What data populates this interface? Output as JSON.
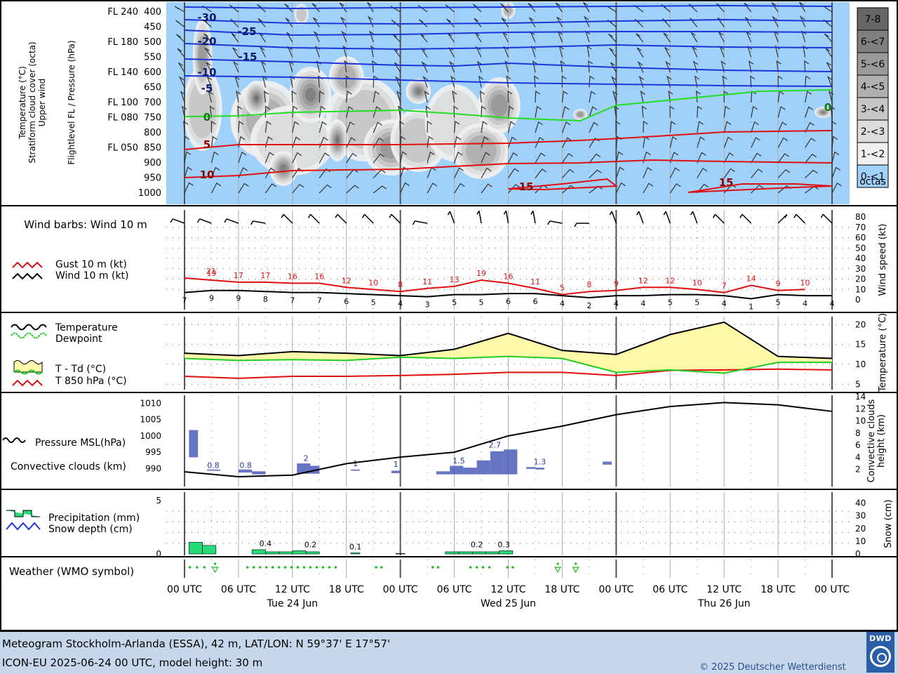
{
  "panels": {
    "upper": {
      "label_left_1": "Temperature (°C)",
      "label_left_2": "Stratiform cloud cover (octa)",
      "label_left_3": "Upper wind",
      "label_right": "Flightlevel FL / Pressure (hPa)",
      "pressure_levels": [
        "400",
        "450",
        "500",
        "550",
        "600",
        "650",
        "700",
        "750",
        "800",
        "850",
        "900",
        "950",
        "1000"
      ],
      "flight_levels": [
        {
          "label": "FL 240",
          "level": "400"
        },
        {
          "label": "FL 180",
          "level": "500"
        },
        {
          "label": "FL 140",
          "level": "600"
        },
        {
          "label": "FL 100",
          "level": "700"
        },
        {
          "label": "FL 080",
          "level": "750"
        },
        {
          "label": "FL 050",
          "level": "850"
        }
      ],
      "cloud_legend": [
        "7-8",
        "6-<7",
        "5-<6",
        "4-<5",
        "3-<4",
        "2-<3",
        "1-<2",
        "0-<1"
      ],
      "cloud_legend_unit": "octas",
      "cloud_legend_colors": [
        "#666666",
        "#808080",
        "#9a9a9a",
        "#b0b0b0",
        "#c6c6c6",
        "#dcdcdc",
        "#efefef",
        "#9fd1fa"
      ],
      "isotherm_labels": [
        "-30",
        "-25",
        "-20",
        "-15",
        "-10",
        "-5",
        "0",
        "5",
        "10",
        "15",
        "15",
        "0"
      ]
    },
    "wind": {
      "title": "Wind barbs: Wind 10 m",
      "gust_legend": "Gust 10 m (kt)",
      "wind_legend": "Wind 10 m (kt)",
      "axis_label": "Wind speed (kt)",
      "ticks": [
        "80",
        "70",
        "60",
        "50",
        "40",
        "30",
        "20",
        "10",
        "0"
      ]
    },
    "temperature": {
      "legend_temp": "Temperature",
      "legend_dew": "Dewpoint",
      "legend_spread": "T - Td (°C)",
      "legend_t850": "T 850 hPa (°C)",
      "axis_label": "Temperature (°C)",
      "ticks": [
        "20",
        "15",
        "10",
        "5"
      ]
    },
    "pressure": {
      "legend_pressure": "Pressure MSL(hPa)",
      "legend_conv": "Convective clouds (km)",
      "axis_label_1": "Convective clouds",
      "axis_label_2": "height (km)",
      "ticks_left": [
        "1010",
        "1005",
        "1000",
        "995",
        "990"
      ],
      "ticks_right": [
        "14",
        "12",
        "10",
        "8",
        "6",
        "4",
        "2"
      ]
    },
    "precip": {
      "legend_precip": "Precipitation (mm)",
      "legend_snow": "Snow depth (cm)",
      "axis_label": "Snow (cm)",
      "ticks_left": [
        "5",
        "0"
      ],
      "ticks_right": [
        "40",
        "30",
        "20",
        "10",
        "0"
      ]
    },
    "weather": {
      "title": "Weather (WMO symbol)"
    }
  },
  "time_axis": {
    "hours": [
      "00 UTC",
      "06 UTC",
      "12 UTC",
      "18 UTC",
      "00 UTC",
      "06 UTC",
      "12 UTC",
      "18 UTC",
      "00 UTC",
      "06 UTC",
      "12 UTC",
      "18 UTC",
      "00 UTC"
    ],
    "days": [
      "Tue 24 Jun",
      "Wed 25 Jun",
      "Thu 26 Jun"
    ]
  },
  "footer": {
    "line1": "Meteogram Stockholm-Arlanda (ESSA), 42 m, LAT/LON: N 59°37' E 17°57'",
    "line2": "ICON-EU 2025-06-24 00 UTC, model height: 30 m",
    "copyright": "© 2025 Deutscher Wetterdienst",
    "logo_text": "DWD"
  },
  "colors": {
    "gust": "#e01010",
    "wind": "#000000",
    "temperature": "#000000",
    "dewpoint": "#22cc22",
    "t850": "#e01010",
    "spread_fill": "#fff8a8",
    "conv_bar": "#4a5cb8",
    "precip_bar": "#22dd77",
    "upper_bg": "#9fd1fa",
    "isotherm_neg": "#1d35d8",
    "isotherm_zero": "#22dd22",
    "isotherm_pos": "#e01010",
    "footer_bg": "#c6d7ec"
  },
  "chart_data": [
    {
      "type": "line",
      "title": "Wind barbs: Wind 10 m",
      "x": [
        "00",
        "03",
        "06",
        "09",
        "12",
        "15",
        "18",
        "21",
        "00",
        "03",
        "06",
        "09",
        "12",
        "15",
        "18",
        "21",
        "00",
        "03",
        "06",
        "09",
        "12",
        "15",
        "18",
        "21",
        "00"
      ],
      "series": [
        {
          "name": "Gust 10 m (kt)",
          "values": [
            21,
            19,
            17,
            17,
            16,
            16,
            12,
            10,
            8,
            11,
            13,
            19,
            16,
            11,
            5,
            8,
            9,
            12,
            12,
            10,
            7,
            14,
            9,
            10,
            null
          ]
        },
        {
          "name": "Wind 10 m (kt)",
          "values": [
            7,
            9,
            9,
            8,
            7,
            7,
            6,
            5,
            4,
            3,
            5,
            5,
            6,
            6,
            4,
            2,
            4,
            4,
            5,
            5,
            4,
            1,
            5,
            4,
            4
          ]
        }
      ],
      "ylabel": "Wind speed (kt)",
      "ylim": [
        0,
        80
      ]
    },
    {
      "type": "line",
      "x_hours": [
        0,
        6,
        12,
        18,
        24,
        30,
        36,
        42,
        48,
        54,
        60,
        66,
        72
      ],
      "series": [
        {
          "name": "Temperature",
          "values": [
            12.8,
            12.2,
            13.2,
            12.8,
            12.2,
            13.8,
            17.8,
            13.5,
            12.5,
            17.5,
            20.6,
            12.0,
            11.5
          ]
        },
        {
          "name": "Dewpoint",
          "values": [
            11.5,
            11.0,
            11.2,
            11.0,
            11.8,
            11.5,
            12.0,
            11.5,
            8.0,
            8.6,
            7.8,
            10.5,
            10.5
          ]
        },
        {
          "name": "T 850 hPa (°C)",
          "values": [
            7.0,
            6.5,
            7.0,
            7.0,
            7.2,
            7.5,
            8.0,
            8.0,
            7.2,
            8.5,
            8.6,
            8.8,
            8.6
          ]
        }
      ],
      "ylabel": "Temperature (°C)",
      "ylim": [
        4,
        22
      ]
    },
    {
      "type": "line",
      "x_hours": [
        0,
        6,
        12,
        18,
        24,
        30,
        36,
        42,
        48,
        54,
        60,
        66,
        72
      ],
      "series": [
        {
          "name": "Pressure MSL(hPa)",
          "values": [
            989.0,
            987.5,
            988.0,
            991.5,
            993.5,
            995.0,
            1000.0,
            1003.0,
            1006.5,
            1009.0,
            1010.2,
            1009.5,
            1007.5
          ]
        }
      ],
      "ylim": [
        986,
        1012
      ]
    },
    {
      "type": "bar",
      "title": "Convective clouds (km)",
      "labels": [
        "0.8",
        "0.8",
        "2",
        "1",
        "1",
        "1.5",
        "2.7",
        "1.3"
      ],
      "ylim": [
        0,
        14
      ]
    },
    {
      "type": "bar",
      "title": "Precipitation (mm)",
      "labels": [
        "0.4",
        "0.2",
        "0.1",
        "0.2",
        "0.3"
      ],
      "ylim": [
        0,
        5
      ]
    }
  ]
}
